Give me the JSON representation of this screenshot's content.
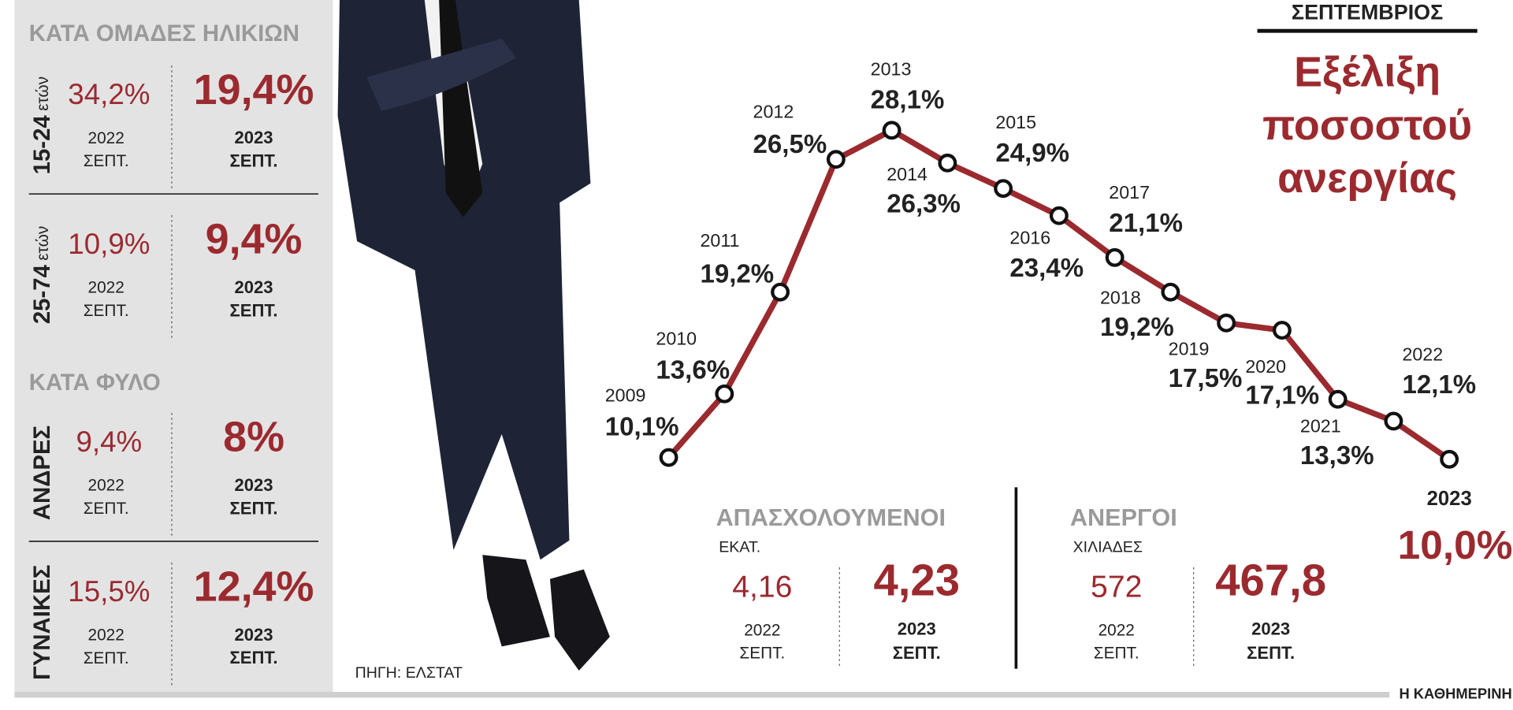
{
  "left_panel": {
    "groups": [
      {
        "heading": "ΚΑΤΑ ΟΜΑΔΕΣ ΗΛΙΚΙΩΝ",
        "rows": [
          {
            "label": "15-24",
            "label_sub": "ετών",
            "prev_value": "34,2%",
            "prev_year": "2022",
            "prev_month": "ΣΕΠΤ.",
            "curr_value": "19,4%",
            "curr_year": "2023",
            "curr_month": "ΣΕΠΤ."
          },
          {
            "label": "25-74",
            "label_sub": "ετών",
            "prev_value": "10,9%",
            "prev_year": "2022",
            "prev_month": "ΣΕΠΤ.",
            "curr_value": "9,4%",
            "curr_year": "2023",
            "curr_month": "ΣΕΠΤ."
          }
        ]
      },
      {
        "heading": "ΚΑΤΑ ΦΥΛΟ",
        "rows": [
          {
            "label": "ΑΝΔΡΕΣ",
            "prev_value": "9,4%",
            "prev_year": "2022",
            "prev_month": "ΣΕΠΤ.",
            "curr_value": "8%",
            "curr_year": "2023",
            "curr_month": "ΣΕΠΤ."
          },
          {
            "label": "ΓΥΝΑΙΚΕΣ",
            "prev_value": "15,5%",
            "prev_year": "2022",
            "prev_month": "ΣΕΠΤ.",
            "curr_value": "12,4%",
            "curr_year": "2023",
            "curr_month": "ΣΕΠΤ."
          }
        ]
      }
    ]
  },
  "chart_data": {
    "type": "line",
    "header": "ΣΕΠΤΕΜΒΡΙΟΣ",
    "title": "Εξέλιξη ποσοστού ανεργίας",
    "categories": [
      "2009",
      "2010",
      "2011",
      "2012",
      "2013",
      "2014",
      "2015",
      "2016",
      "2017",
      "2018",
      "2019",
      "2020",
      "2021",
      "2022",
      "2023"
    ],
    "series": [
      {
        "color": "#9b2a2f",
        "values": [
          10.1,
          13.6,
          19.2,
          26.5,
          28.1,
          26.3,
          24.9,
          23.4,
          21.1,
          19.2,
          17.5,
          17.1,
          13.3,
          12.1,
          10.0
        ],
        "value_labels": [
          "10,1%",
          "13,6%",
          "19,2%",
          "26,5%",
          "28,1%",
          "26,3%",
          "24,9%",
          "23,4%",
          "21,1%",
          "19,2%",
          "17,5%",
          "17,1%",
          "13,3%",
          "12,1%",
          "10,0%"
        ]
      }
    ]
  },
  "summary": [
    {
      "heading": "ΑΠΑΣΧΟΛΟΥΜΕΝΟΙ",
      "unit": "ΕΚΑΤ.",
      "prev_value": "4,16",
      "prev_year": "2022",
      "prev_month": "ΣΕΠΤ.",
      "curr_value": "4,23",
      "curr_year": "2023",
      "curr_month": "ΣΕΠΤ."
    },
    {
      "heading": "ΑΝΕΡΓΟΙ",
      "unit": "ΧΙΛΙΑΔΕΣ",
      "prev_value": "572",
      "prev_year": "2022",
      "prev_month": "ΣΕΠΤ.",
      "curr_value": "467,8",
      "curr_year": "2023",
      "curr_month": "ΣΕΠΤ."
    }
  ],
  "source": "ΠΗΓΗ: ΕΛΣΤΑΤ",
  "brand": "Η ΚΑΘΗΜΕΡΙΝΗ"
}
